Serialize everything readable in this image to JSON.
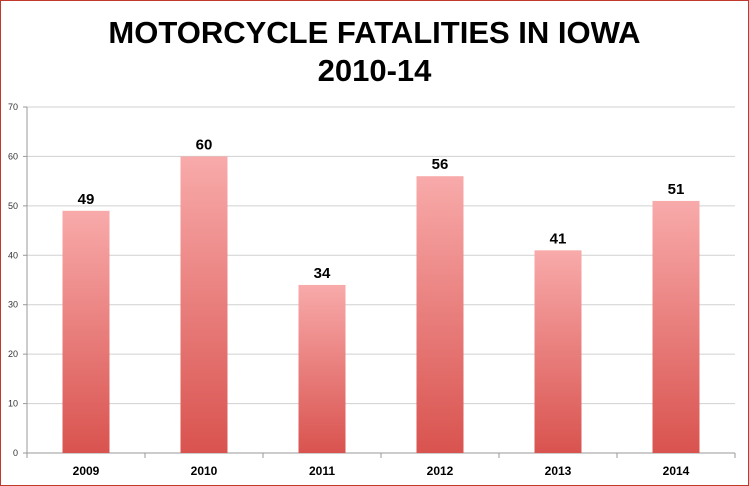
{
  "chart_data": {
    "type": "bar",
    "title_line1": "MOTORCYCLE FATALITIES IN IOWA",
    "title_line2": "2010-14",
    "categories": [
      "2009",
      "2010",
      "2011",
      "2012",
      "2013",
      "2014"
    ],
    "values": [
      49,
      60,
      34,
      56,
      41,
      51
    ],
    "xlabel": "",
    "ylabel": "",
    "ylim": [
      0,
      70
    ],
    "yticks": [
      0,
      10,
      20,
      30,
      40,
      50,
      60,
      70
    ],
    "grid": true,
    "legend": "none",
    "data_labels": true,
    "colors": {
      "bar_top": "#f8aaaa",
      "bar_bottom": "#d9534f",
      "grid": "#d0d0d0",
      "axis": "#999999",
      "border": "#c0392b"
    }
  }
}
